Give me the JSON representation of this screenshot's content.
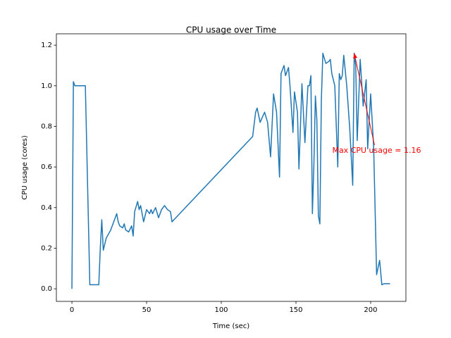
{
  "chart_data": {
    "type": "line",
    "title": "CPU usage over Time",
    "x_label": "Time (sec)",
    "y_label": "CPU usage (cores)",
    "color": "#1f77b4",
    "x": [
      0,
      1,
      2,
      4,
      6,
      8,
      9,
      12,
      18,
      19,
      20,
      21,
      22,
      23,
      26,
      28,
      30,
      31,
      32,
      34,
      35,
      36,
      38,
      40,
      41,
      42,
      44,
      45,
      46,
      48,
      50,
      52,
      53,
      54,
      56,
      58,
      60,
      62,
      64,
      66,
      67,
      121,
      123,
      124,
      126,
      129,
      131,
      133,
      135,
      137,
      139,
      140,
      142,
      143,
      145,
      146,
      148,
      149,
      151,
      152,
      154,
      156,
      158,
      159,
      160,
      161,
      162,
      163,
      164,
      165,
      166,
      167,
      168,
      170,
      172,
      173,
      174,
      176,
      178,
      179,
      180,
      181,
      182,
      184,
      186,
      188,
      189,
      190,
      191,
      193,
      195,
      197,
      198,
      200,
      202,
      204,
      206,
      207.5,
      209,
      213
    ],
    "values": [
      0.0,
      1.02,
      1.0,
      1.0,
      1.0,
      1.0,
      1.0,
      0.02,
      0.02,
      0.2,
      0.34,
      0.19,
      0.22,
      0.25,
      0.29,
      0.33,
      0.37,
      0.33,
      0.31,
      0.3,
      0.32,
      0.29,
      0.28,
      0.31,
      0.26,
      0.38,
      0.43,
      0.39,
      0.41,
      0.33,
      0.39,
      0.37,
      0.39,
      0.37,
      0.4,
      0.35,
      0.39,
      0.41,
      0.39,
      0.38,
      0.33,
      0.75,
      0.87,
      0.89,
      0.82,
      0.87,
      0.82,
      0.65,
      0.96,
      0.87,
      0.55,
      1.06,
      1.1,
      1.05,
      1.09,
      1.0,
      0.77,
      0.97,
      0.87,
      0.59,
      1.01,
      0.72,
      1.0,
      1.0,
      1.05,
      0.37,
      0.61,
      0.95,
      0.83,
      0.36,
      0.32,
      0.93,
      1.16,
      1.11,
      1.12,
      1.13,
      1.06,
      1.0,
      0.6,
      1.06,
      1.03,
      1.05,
      1.15,
      1.0,
      0.79,
      0.51,
      1.16,
      1.1,
      0.73,
      1.13,
      0.9,
      1.03,
      0.69,
      0.96,
      0.7,
      0.07,
      0.14,
      0.02,
      0.025,
      0.025
    ],
    "xlim": [
      -10.4,
      223.6
    ],
    "ylim": [
      -0.062,
      1.256
    ],
    "xticks": [
      0,
      50,
      100,
      150,
      200
    ],
    "yticks": [
      {
        "value": 0.0,
        "label": "0.0"
      },
      0.2,
      0.4,
      0.6,
      0.8,
      {
        "value": 1.0,
        "label": "1.0"
      },
      1.2
    ],
    "annotation": {
      "text": "Max CPU usage = 1.16",
      "xy": [
        189,
        1.16
      ],
      "xytext": [
        204,
        0.68
      ],
      "color": "red"
    }
  }
}
